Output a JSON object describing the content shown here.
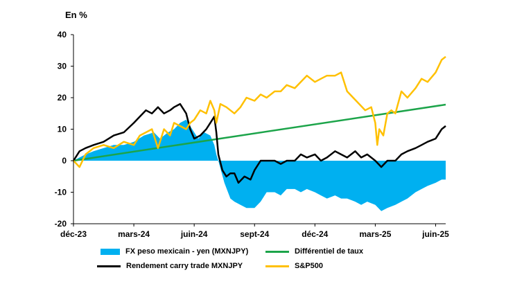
{
  "chart_data": {
    "type": "line",
    "unit_label": "En %",
    "ylim": [
      -20,
      40
    ],
    "yticks": [
      "40",
      "30",
      "20",
      "10",
      "0",
      "-10",
      "-20"
    ],
    "ytick_values": [
      40,
      30,
      20,
      10,
      0,
      -10,
      -20
    ],
    "xlim": [
      0,
      18.5
    ],
    "xticks": [
      "déc-23",
      "mars-24",
      "juin-24",
      "sept-24",
      "déc-24",
      "mars-25",
      "juin-25"
    ],
    "xtick_values": [
      0,
      3,
      6,
      9,
      12,
      15,
      18
    ],
    "series": [
      {
        "name": "FX peso mexicain - yen (MXNJPY)",
        "kind": "area",
        "color": "#00b0f0",
        "x": [
          0,
          0.3,
          0.6,
          1,
          1.5,
          2,
          2.5,
          3,
          3.5,
          4,
          4.3,
          4.7,
          5,
          5.3,
          5.6,
          5.9,
          6.2,
          6.5,
          6.8,
          7.0,
          7.1,
          7.2,
          7.5,
          7.8,
          8,
          8.3,
          8.6,
          9,
          9.3,
          9.6,
          10,
          10.3,
          10.6,
          11,
          11.3,
          11.6,
          12,
          12.3,
          12.6,
          13,
          13.3,
          13.6,
          14,
          14.3,
          14.6,
          15,
          15.3,
          15.6,
          16,
          16.3,
          16.6,
          17,
          17.3,
          17.6,
          18,
          18.3,
          18.5
        ],
        "values": [
          0,
          1,
          2,
          3,
          4,
          5,
          5,
          6,
          8,
          9,
          7,
          9,
          10,
          12,
          13,
          10,
          7,
          9,
          8,
          5,
          2,
          0,
          -7,
          -12,
          -13,
          -14,
          -15,
          -15,
          -13,
          -10,
          -10,
          -11,
          -9,
          -9,
          -10,
          -9,
          -10,
          -11,
          -12,
          -11,
          -12,
          -12,
          -13,
          -14,
          -13,
          -14,
          -16,
          -15,
          -14,
          -13,
          -12,
          -10,
          -9,
          -8,
          -7,
          -6,
          -6
        ]
      },
      {
        "name": "Différentiel de taux",
        "kind": "line",
        "color": "#1ca44a",
        "x": [
          0,
          18.5
        ],
        "values": [
          0,
          17.8
        ]
      },
      {
        "name": "Rendement carry trade MXNJPY",
        "kind": "line",
        "color": "#000000",
        "x": [
          0,
          0.3,
          0.6,
          1,
          1.5,
          2,
          2.5,
          3,
          3.3,
          3.6,
          3.9,
          4.2,
          4.5,
          4.8,
          5,
          5.3,
          5.6,
          5.8,
          6,
          6.3,
          6.6,
          6.8,
          7,
          7.1,
          7.2,
          7.4,
          7.6,
          7.8,
          8,
          8.2,
          8.5,
          8.8,
          9,
          9.3,
          9.6,
          10,
          10.3,
          10.6,
          11,
          11.3,
          11.6,
          12,
          12.3,
          12.6,
          13,
          13.3,
          13.6,
          14,
          14.3,
          14.6,
          15,
          15.3,
          15.6,
          16,
          16.3,
          16.6,
          17,
          17.3,
          17.6,
          18,
          18.3,
          18.5
        ],
        "values": [
          0,
          3,
          4,
          5,
          6,
          8,
          9,
          12,
          14,
          16,
          15,
          17,
          15,
          16,
          17,
          18,
          15,
          10,
          7,
          8,
          10,
          12,
          14,
          9,
          2,
          -3,
          -5,
          -4,
          -4,
          -7,
          -5,
          -6,
          -3,
          0,
          0,
          0,
          -1,
          0,
          0,
          2,
          1,
          2,
          0,
          1,
          3,
          2,
          1,
          3,
          1,
          2,
          0,
          -2,
          0,
          0,
          2,
          3,
          4,
          5,
          6,
          7,
          10,
          11
        ]
      },
      {
        "name": "S&P500",
        "kind": "line",
        "color": "#ffc000",
        "x": [
          0,
          0.3,
          0.6,
          1,
          1.5,
          2,
          2.5,
          3,
          3.3,
          3.6,
          3.9,
          4.2,
          4.5,
          4.8,
          5,
          5.3,
          5.6,
          5.8,
          6,
          6.3,
          6.6,
          6.8,
          7,
          7.1,
          7.3,
          7.6,
          8,
          8.3,
          8.6,
          9,
          9.3,
          9.6,
          10,
          10.3,
          10.6,
          11,
          11.3,
          11.6,
          12,
          12.3,
          12.6,
          13,
          13.3,
          13.6,
          13.9,
          14.2,
          14.5,
          14.8,
          15,
          15.1,
          15.2,
          15.4,
          15.6,
          15.8,
          16,
          16.3,
          16.6,
          17,
          17.3,
          17.6,
          18,
          18.3,
          18.5
        ],
        "values": [
          0,
          -2,
          2,
          4,
          5,
          4,
          6,
          5,
          8,
          9,
          10,
          4,
          10,
          8,
          12,
          11,
          10,
          12,
          13,
          16,
          15,
          19,
          16,
          12,
          18,
          17,
          15,
          17,
          20,
          19,
          21,
          20,
          22,
          22,
          24,
          23,
          25,
          27,
          25,
          26,
          27,
          27,
          28,
          22,
          20,
          18,
          16,
          17,
          12,
          5,
          10,
          8,
          15,
          16,
          15,
          22,
          20,
          23,
          26,
          25,
          28,
          32,
          33
        ]
      }
    ]
  }
}
